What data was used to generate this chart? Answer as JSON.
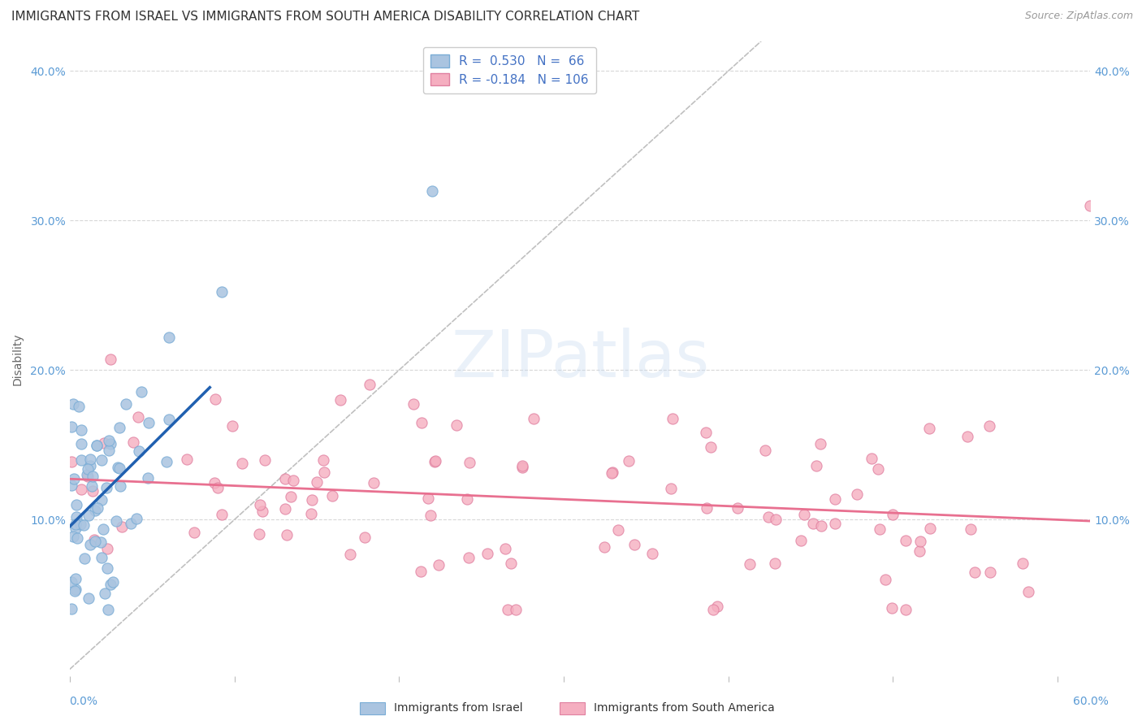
{
  "title": "IMMIGRANTS FROM ISRAEL VS IMMIGRANTS FROM SOUTH AMERICA DISABILITY CORRELATION CHART",
  "source": "Source: ZipAtlas.com",
  "ylabel": "Disability",
  "xlim": [
    0.0,
    0.62
  ],
  "ylim": [
    -0.005,
    0.42
  ],
  "yticks": [
    0.0,
    0.1,
    0.2,
    0.3,
    0.4
  ],
  "israel_color": "#aac4e0",
  "israel_edge": "#7aadd6",
  "south_america_color": "#f5aec0",
  "south_america_edge": "#e080a0",
  "israel_R": 0.53,
  "israel_N": 66,
  "south_america_R": -0.184,
  "south_america_N": 106,
  "israel_line_color": "#2060b0",
  "south_america_line_color": "#e87090",
  "reference_line_color": "#c0c0c0",
  "grid_color": "#d8d8d8",
  "axis_tick_color": "#5b9bd5",
  "watermark_color": "#c5d8f0",
  "legend_R_color": "#4472c4",
  "legend_N_color": "#c0392b",
  "background_color": "#ffffff"
}
